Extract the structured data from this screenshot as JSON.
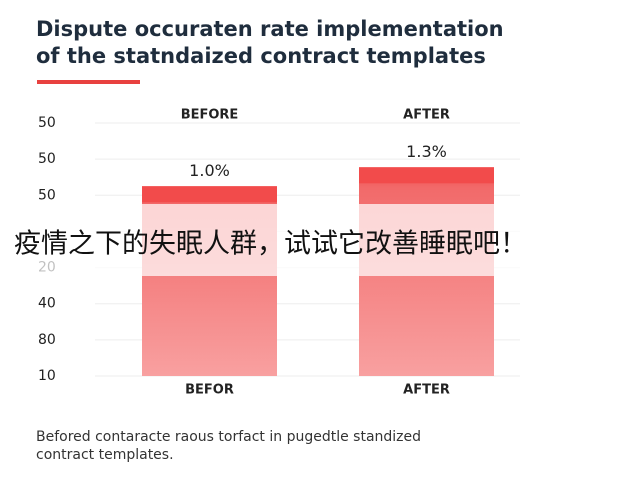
{
  "chart_data": {
    "type": "bar",
    "title_lines": [
      "Dispute occuraten rate implementation",
      "of the statndaized contract templates"
    ],
    "column_headers": [
      "BEFORE",
      "AFTER"
    ],
    "categories": [
      "BEFOR",
      "AFTER"
    ],
    "values": [
      1.0,
      1.3
    ],
    "value_labels": [
      "1.0%",
      "1.3%"
    ],
    "ylim": [
      -2.0,
      2.0
    ],
    "y_labels": [
      "50",
      "50",
      "50",
      null,
      "20",
      "40",
      "80",
      "10"
    ],
    "grid": true,
    "color": "#f24b4b",
    "footnote_lines": [
      "Befored contaracte raous torfact in pugedtle standized",
      "contract templates."
    ],
    "overlay_text": "疫情之下的失眠人群，试试它改善睡眠吧！"
  }
}
